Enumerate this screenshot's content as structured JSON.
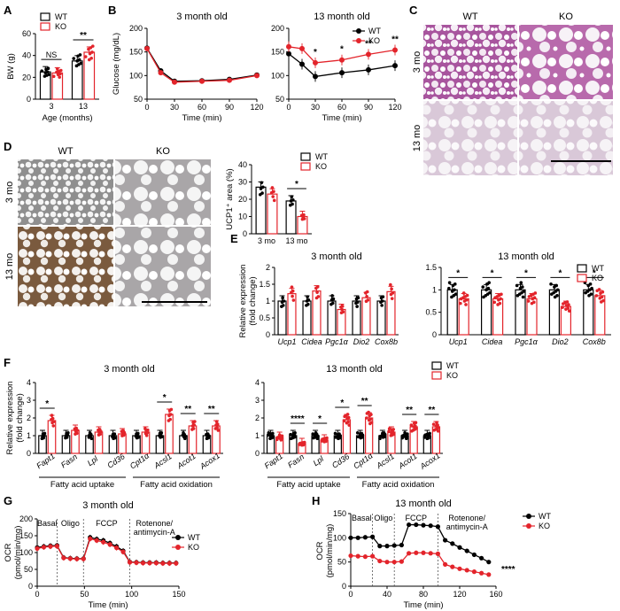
{
  "colors": {
    "wt": "#000000",
    "ko": "#e3242b"
  },
  "panel_letters": [
    "A",
    "B",
    "C",
    "D",
    "E",
    "F",
    "G",
    "H"
  ],
  "legend": {
    "wt": "WT",
    "ko": "KO"
  },
  "micrographs": {
    "C": {
      "cols": [
        "WT",
        "KO"
      ],
      "rows": [
        "3 mo",
        "13 mo"
      ],
      "style": "H&E stain"
    },
    "D": {
      "cols": [
        "WT",
        "KO"
      ],
      "rows": [
        "3 mo",
        "13 mo"
      ],
      "style": "UCP1 immunostain"
    }
  },
  "chart_data": [
    {
      "id": "A",
      "type": "bar",
      "ylabel": "BW (g)",
      "xlabel": "Age (months)",
      "categories": [
        "3",
        "13"
      ],
      "ylim": [
        0,
        60
      ],
      "yticks": [
        0,
        20,
        40,
        60
      ],
      "series": [
        {
          "name": "WT",
          "values": [
            25,
            35
          ]
        },
        {
          "name": "KO",
          "values": [
            24,
            43
          ]
        }
      ],
      "annotations": [
        {
          "cat": "3",
          "text": "NS"
        },
        {
          "cat": "13",
          "text": "**"
        }
      ]
    },
    {
      "id": "B1",
      "type": "line",
      "title": "3 month old",
      "ylabel": "Glucose (mg/dL)",
      "xlabel": "Time (min)",
      "x": [
        0,
        15,
        30,
        60,
        90,
        120
      ],
      "ylim": [
        50,
        200
      ],
      "yticks": [
        50,
        100,
        150,
        200
      ],
      "xticks": [
        0,
        30,
        60,
        90,
        120
      ],
      "series": [
        {
          "name": "WT",
          "values": [
            158,
            110,
            88,
            89,
            92,
            101
          ]
        },
        {
          "name": "KO",
          "values": [
            157,
            106,
            86,
            88,
            90,
            100
          ]
        }
      ]
    },
    {
      "id": "B2",
      "type": "line",
      "title": "13 month old",
      "xlabel": "Time (min)",
      "x": [
        0,
        15,
        30,
        60,
        90,
        120
      ],
      "ylim": [
        50,
        200
      ],
      "yticks": [
        50,
        100,
        150,
        200
      ],
      "xticks": [
        0,
        30,
        60,
        90,
        120
      ],
      "series": [
        {
          "name": "WT",
          "values": [
            146,
            124,
            98,
            106,
            112,
            121
          ]
        },
        {
          "name": "KO",
          "values": [
            161,
            157,
            127,
            133,
            145,
            154
          ]
        }
      ],
      "annotations": [
        {
          "x": 30,
          "text": "*"
        },
        {
          "x": 60,
          "text": "*"
        },
        {
          "x": 90,
          "text": "**"
        },
        {
          "x": 120,
          "text": "**"
        }
      ]
    },
    {
      "id": "D",
      "type": "bar",
      "ylabel": "UCP1⁺ area (%)",
      "categories": [
        "3 mo",
        "13 mo"
      ],
      "ylim": [
        0,
        40
      ],
      "yticks": [
        0,
        10,
        20,
        30,
        40
      ],
      "series": [
        {
          "name": "WT",
          "values": [
            27,
            19
          ]
        },
        {
          "name": "KO",
          "values": [
            23,
            10
          ]
        }
      ],
      "annotations": [
        {
          "cat": "13 mo",
          "text": "*"
        }
      ]
    },
    {
      "id": "E1",
      "type": "bar",
      "title": "3 month old",
      "ylabel": "Relative expression (fold change)",
      "categories": [
        "Ucp1",
        "Cidea",
        "Pgc1α",
        "Dio2",
        "Cox8b"
      ],
      "ylim": [
        0,
        2.0
      ],
      "yticks": [
        0,
        0.5,
        1.0,
        1.5,
        2.0
      ],
      "series": [
        {
          "name": "WT",
          "values": [
            1.0,
            1.0,
            1.0,
            1.0,
            1.0
          ]
        },
        {
          "name": "KO",
          "values": [
            1.22,
            1.3,
            0.75,
            1.1,
            1.28
          ]
        }
      ]
    },
    {
      "id": "E2",
      "type": "bar",
      "title": "13 month old",
      "categories": [
        "Ucp1",
        "Cidea",
        "Pgc1α",
        "Dio2",
        "Cox8b"
      ],
      "ylim": [
        0,
        1.5
      ],
      "yticks": [
        0,
        0.5,
        1.0,
        1.5
      ],
      "series": [
        {
          "name": "WT",
          "values": [
            1.0,
            1.0,
            1.0,
            1.0,
            1.0
          ]
        },
        {
          "name": "KO",
          "values": [
            0.8,
            0.8,
            0.8,
            0.63,
            0.87
          ]
        }
      ],
      "annotations": [
        {
          "cat": "Ucp1",
          "text": "*"
        },
        {
          "cat": "Cidea",
          "text": "*"
        },
        {
          "cat": "Pgc1α",
          "text": "*"
        },
        {
          "cat": "Dio2",
          "text": "*"
        },
        {
          "cat": "Cox8b",
          "text": "*"
        }
      ]
    },
    {
      "id": "F1",
      "type": "bar",
      "title": "3 month old",
      "ylabel": "Relative expression (fold change)",
      "categories": [
        "Fapt1",
        "Fasn",
        "Lpl",
        "Cd36",
        "Cpt1α",
        "Acsl1",
        "Acot1",
        "Acox1"
      ],
      "groups": [
        {
          "label": "Fatty acid uptake",
          "from": 0,
          "to": 3
        },
        {
          "label": "Fatty acid oxidation",
          "from": 4,
          "to": 7
        }
      ],
      "ylim": [
        0,
        4
      ],
      "yticks": [
        0,
        1,
        2,
        3,
        4
      ],
      "series": [
        {
          "name": "WT",
          "values": [
            1.0,
            1.0,
            1.0,
            1.0,
            1.0,
            1.0,
            1.0,
            1.0
          ]
        },
        {
          "name": "KO",
          "values": [
            1.85,
            1.3,
            1.2,
            1.1,
            1.2,
            2.2,
            1.55,
            1.55
          ]
        }
      ],
      "annotations": [
        {
          "cat": "Fapt1",
          "text": "*"
        },
        {
          "cat": "Acsl1",
          "text": "*"
        },
        {
          "cat": "Acot1",
          "text": "**"
        },
        {
          "cat": "Acox1",
          "text": "**"
        }
      ]
    },
    {
      "id": "F2",
      "type": "bar",
      "title": "13 month old",
      "categories": [
        "Fapt1",
        "Fasn",
        "Lpl",
        "Cd36",
        "Cpt1α",
        "Acsl1",
        "Acot1",
        "Acox1"
      ],
      "groups": [
        {
          "label": "Fatty acid uptake",
          "from": 0,
          "to": 3
        },
        {
          "label": "Fatty acid oxidation",
          "from": 4,
          "to": 7
        }
      ],
      "ylim": [
        0,
        4
      ],
      "yticks": [
        0,
        1,
        2,
        3,
        4
      ],
      "series": [
        {
          "name": "WT",
          "values": [
            1.0,
            1.0,
            1.0,
            1.0,
            1.0,
            1.0,
            1.0,
            1.0
          ]
        },
        {
          "name": "KO",
          "values": [
            0.9,
            0.55,
            0.75,
            1.9,
            2.0,
            1.2,
            1.5,
            1.5
          ]
        }
      ],
      "annotations": [
        {
          "cat": "Fasn",
          "text": "****"
        },
        {
          "cat": "Lpl",
          "text": "*"
        },
        {
          "cat": "Cd36",
          "text": "*"
        },
        {
          "cat": "Cpt1α",
          "text": "**"
        },
        {
          "cat": "Acot1",
          "text": "**"
        },
        {
          "cat": "Acox1",
          "text": "**"
        }
      ]
    },
    {
      "id": "G",
      "type": "line",
      "title": "3 month old",
      "ylabel": "OCR (pmol/min/mg)",
      "xlabel": "Time (min)",
      "x": [
        0,
        7,
        14,
        21,
        28,
        35,
        42,
        49,
        56,
        63,
        70,
        77,
        84,
        91,
        98,
        105,
        112,
        119,
        126,
        133,
        140,
        147
      ],
      "xlim": [
        0,
        150
      ],
      "xticks": [
        0,
        50,
        100,
        150
      ],
      "ylim": [
        0,
        200
      ],
      "yticks": [
        0,
        50,
        100,
        150,
        200
      ],
      "phases": [
        "Basal",
        "Oligo",
        "FCCP",
        "Rotenone/ antimycin-A"
      ],
      "phase_lines": [
        21,
        49,
        98
      ],
      "series": [
        {
          "name": "WT",
          "values": [
            115,
            118,
            120,
            121,
            85,
            83,
            82,
            82,
            145,
            140,
            136,
            128,
            118,
            105,
            72,
            71,
            70,
            70,
            70,
            69,
            69,
            69
          ]
        },
        {
          "name": "KO",
          "values": [
            112,
            116,
            118,
            119,
            84,
            82,
            81,
            81,
            141,
            136,
            131,
            124,
            114,
            102,
            71,
            70,
            69,
            69,
            69,
            68,
            68,
            68
          ]
        }
      ]
    },
    {
      "id": "H",
      "type": "line",
      "title": "13 month old",
      "ylabel": "OCR (pmol/min/mg)",
      "xlabel": "Time (min)",
      "x": [
        0,
        8,
        16,
        24,
        32,
        40,
        48,
        56,
        64,
        72,
        80,
        88,
        96,
        104,
        112,
        120,
        128,
        136,
        144,
        152
      ],
      "xlim": [
        0,
        160
      ],
      "xticks": [
        0,
        40,
        80,
        120,
        160
      ],
      "ylim": [
        0,
        150
      ],
      "yticks": [
        0,
        50,
        100,
        150
      ],
      "phases": [
        "Basal",
        "Oligo",
        "FCCP",
        "Rotenone/ antimycin-A"
      ],
      "phase_lines": [
        24,
        48,
        96
      ],
      "series": [
        {
          "name": "WT",
          "values": [
            100,
            100,
            101,
            102,
            83,
            83,
            84,
            85,
            127,
            127,
            126,
            125,
            123,
            95,
            88,
            80,
            73,
            65,
            58,
            50
          ]
        },
        {
          "name": "KO",
          "values": [
            63,
            62,
            61,
            62,
            52,
            50,
            50,
            51,
            68,
            69,
            69,
            68,
            67,
            45,
            40,
            36,
            33,
            30,
            27,
            24
          ]
        }
      ],
      "annotations": [
        {
          "text": "****"
        }
      ]
    }
  ]
}
